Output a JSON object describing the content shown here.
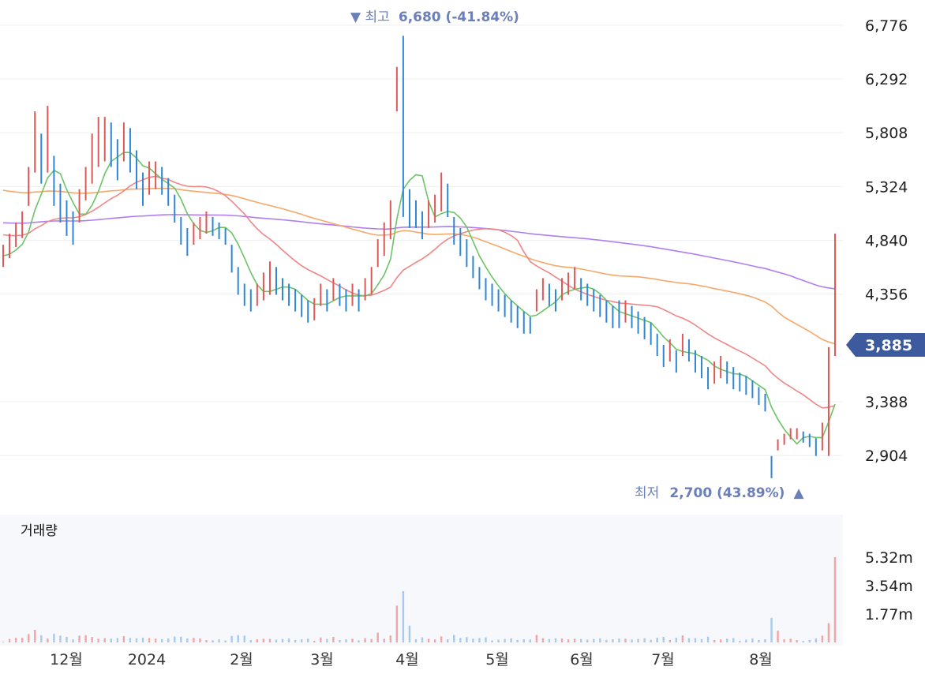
{
  "chart_data": {
    "type": "candlestick",
    "y_axis": {
      "ticks": [
        "6,776",
        "6,292",
        "5,808",
        "5,324",
        "4,840",
        "4,356",
        "3,388",
        "2,904"
      ],
      "tick_values": [
        6776,
        6292,
        5808,
        5324,
        4840,
        4356,
        3388,
        2904
      ],
      "range": [
        2600,
        6860
      ]
    },
    "x_axis": {
      "ticks": [
        "12월",
        "2024",
        "2월",
        "3월",
        "4월",
        "5월",
        "6월",
        "7월",
        "8월"
      ]
    },
    "current_price": {
      "label": "3,885",
      "value": 3885
    },
    "high_annotation": {
      "prefix": "▼ 최고",
      "value": "6,680 (-41.84%)"
    },
    "low_annotation": {
      "prefix": "최저",
      "value": "2,700 (43.89%)",
      "suffix": "▲"
    },
    "volume": {
      "title": "거래량",
      "ticks": [
        "5.32m",
        "3.54m",
        "1.77m"
      ],
      "tick_values": [
        5.32,
        3.54,
        1.77
      ]
    },
    "colors": {
      "up": "#e05757",
      "down": "#2f86d6",
      "ma5": "#6cc466",
      "ma20": "#f08686",
      "ma60": "#f5a86a",
      "ma120": "#b07ef0",
      "current_badge": "#3d5a9e"
    },
    "series": {
      "close": [
        4700,
        4780,
        4880,
        4960,
        5250,
        5700,
        5480,
        5620,
        5300,
        5100,
        4980,
        4900,
        5100,
        5300,
        5500,
        5600,
        5700,
        5650,
        5500,
        5700,
        5600,
        5450,
        5300,
        5400,
        5450,
        5350,
        5250,
        5100,
        4900,
        4800,
        4900,
        4950,
        5000,
        4980,
        4950,
        4900,
        4700,
        4500,
        4350,
        4300,
        4350,
        4400,
        4500,
        4450,
        4400,
        4350,
        4300,
        4250,
        4200,
        4230,
        4350,
        4300,
        4400,
        4350,
        4300,
        4350,
        4300,
        4400,
        4450,
        4700,
        4800,
        5000,
        6200,
        5800,
        5100,
        5050,
        4950,
        5050,
        5100,
        5250,
        5150,
        4900,
        4800,
        4700,
        4600,
        4500,
        4400,
        4350,
        4300,
        4250,
        4200,
        4150,
        4100,
        4080,
        4300,
        4400,
        4350,
        4300,
        4400,
        4450,
        4500,
        4400,
        4350,
        4300,
        4250,
        4200,
        4150,
        4100,
        4200,
        4150,
        4100,
        4050,
        4000,
        3900,
        3800,
        3850,
        3750,
        3900,
        3850,
        3750,
        3700,
        3600,
        3650,
        3700,
        3650,
        3600,
        3580,
        3550,
        3500,
        3450,
        3400,
        2800,
        3000,
        3050,
        3100,
        3100,
        3080,
        3050,
        3000,
        3100,
        3800,
        3885
      ],
      "high": [
        4800,
        4900,
        5000,
        5100,
        5500,
        6000,
        5800,
        6050,
        5600,
        5350,
        5200,
        5100,
        5300,
        5500,
        5800,
        5950,
        5950,
        5900,
        5750,
        5900,
        5850,
        5650,
        5450,
        5550,
        5550,
        5500,
        5400,
        5250,
        5050,
        4950,
        5000,
        5050,
        5100,
        5050,
        5000,
        4950,
        4800,
        4600,
        4450,
        4400,
        4450,
        4550,
        4650,
        4600,
        4500,
        4450,
        4400,
        4350,
        4300,
        4320,
        4450,
        4400,
        4500,
        4450,
        4400,
        4450,
        4400,
        4500,
        4600,
        4850,
        5000,
        5200,
        6400,
        6680,
        5300,
        5200,
        5100,
        5200,
        5250,
        5450,
        5350,
        5050,
        4950,
        4850,
        4700,
        4600,
        4500,
        4450,
        4400,
        4350,
        4300,
        4250,
        4200,
        4150,
        4400,
        4500,
        4450,
        4400,
        4500,
        4550,
        4600,
        4500,
        4450,
        4400,
        4350,
        4300,
        4250,
        4300,
        4300,
        4250,
        4200,
        4150,
        4100,
        4000,
        3900,
        3950,
        3850,
        4000,
        3950,
        3850,
        3800,
        3700,
        3750,
        3800,
        3750,
        3700,
        3650,
        3620,
        3580,
        3520,
        3460,
        2900,
        3050,
        3100,
        3150,
        3150,
        3120,
        3100,
        3060,
        3200,
        3880,
        4900
      ],
      "low": [
        4600,
        4680,
        4780,
        4860,
        5150,
        5450,
        5350,
        5450,
        5150,
        5000,
        4880,
        4800,
        5000,
        5200,
        5350,
        5500,
        5550,
        5500,
        5380,
        5550,
        5450,
        5300,
        5150,
        5250,
        5300,
        5250,
        5150,
        5000,
        4800,
        4700,
        4800,
        4850,
        4900,
        4880,
        4850,
        4800,
        4550,
        4350,
        4250,
        4200,
        4250,
        4300,
        4350,
        4350,
        4300,
        4250,
        4200,
        4150,
        4100,
        4120,
        4250,
        4200,
        4300,
        4250,
        4200,
        4250,
        4200,
        4300,
        4350,
        4600,
        4700,
        4850,
        6000,
        5050,
        4950,
        4950,
        4850,
        4950,
        5000,
        5100,
        5050,
        4800,
        4700,
        4600,
        4500,
        4400,
        4300,
        4250,
        4200,
        4150,
        4100,
        4050,
        4000,
        4000,
        4200,
        4300,
        4250,
        4200,
        4300,
        4350,
        4400,
        4300,
        4250,
        4200,
        4150,
        4100,
        4050,
        4050,
        4100,
        4050,
        4000,
        3950,
        3900,
        3800,
        3700,
        3750,
        3650,
        3800,
        3750,
        3650,
        3600,
        3500,
        3550,
        3600,
        3550,
        3500,
        3480,
        3450,
        3420,
        3360,
        3300,
        2700,
        2950,
        3000,
        3050,
        3050,
        3020,
        2980,
        2900,
        2950,
        2900,
        3800
      ]
    }
  }
}
